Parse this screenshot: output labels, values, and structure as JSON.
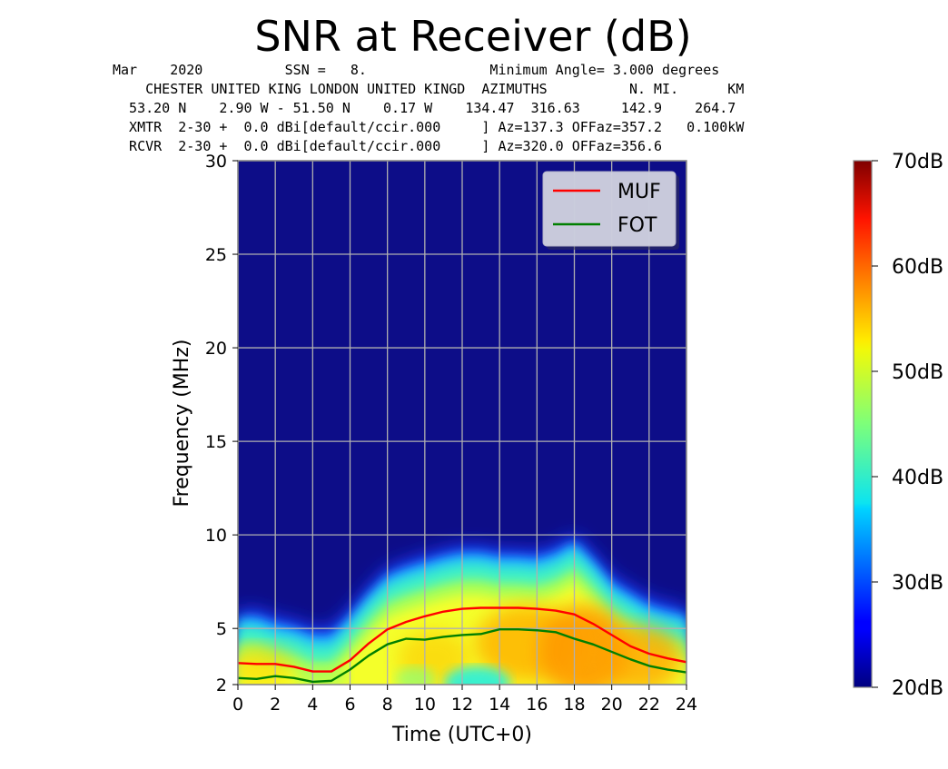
{
  "header": {
    "line1": "Mar    2020          SSN =   8.               Minimum Angle= 3.000 degrees",
    "line2": "    CHESTER UNITED KING LONDON UNITED KINGD  AZIMUTHS          N. MI.      KM",
    "line3": "  53.20 N    2.90 W - 51.50 N    0.17 W    134.47  316.63     142.9    264.7",
    "line4": "  XMTR  2-30 +  0.0 dBi[default/ccir.000     ] Az=137.3 OFFaz=357.2   0.100kW",
    "line5": "  RCVR  2-30 +  0.0 dBi[default/ccir.000     ] Az=320.0 OFFaz=356.6"
  },
  "chart_data": {
    "type": "heatmap",
    "title": "SNR at Receiver (dB)",
    "xlabel": "Time (UTC+0)",
    "ylabel": "Frequency (MHz)",
    "xlim": [
      0,
      24
    ],
    "ylim": [
      2,
      30
    ],
    "xticks": [
      0,
      2,
      4,
      6,
      8,
      10,
      12,
      14,
      16,
      18,
      20,
      22,
      24
    ],
    "yticks": [
      2,
      5,
      10,
      15,
      20,
      25,
      30
    ],
    "grid": true,
    "legend_position": "top-right",
    "colormap": "jet",
    "background_color": "#0d0d88",
    "colorbar": {
      "range": [
        20,
        70
      ],
      "ticks": [
        {
          "value": 20,
          "label": "20dB"
        },
        {
          "value": 30,
          "label": "30dB"
        },
        {
          "value": 40,
          "label": "40dB"
        },
        {
          "value": 50,
          "label": "50dB"
        },
        {
          "value": 60,
          "label": "60dB"
        },
        {
          "value": 70,
          "label": "70dB"
        }
      ]
    },
    "coverage_upper_edge_mhz": {
      "x": [
        0,
        1,
        2,
        3,
        4,
        5,
        6,
        7,
        8,
        9,
        10,
        11,
        12,
        13,
        14,
        15,
        16,
        17,
        18,
        19,
        20,
        21,
        22,
        23,
        24
      ],
      "y": [
        5.4,
        5.4,
        5.0,
        4.8,
        4.4,
        4.4,
        5.4,
        6.6,
        7.6,
        8.0,
        8.3,
        8.6,
        8.8,
        8.8,
        8.6,
        8.6,
        8.5,
        8.8,
        9.4,
        8.4,
        7.2,
        6.6,
        6.0,
        5.7,
        5.5
      ]
    },
    "series": [
      {
        "name": "MUF",
        "color": "#ff0000",
        "x": [
          0,
          1,
          2,
          3,
          4,
          5,
          6,
          7,
          8,
          9,
          10,
          11,
          12,
          13,
          14,
          15,
          16,
          17,
          18,
          19,
          20,
          21,
          22,
          23,
          24
        ],
        "y": [
          3.15,
          3.1,
          3.1,
          2.95,
          2.7,
          2.7,
          3.3,
          4.2,
          4.95,
          5.35,
          5.65,
          5.9,
          6.05,
          6.1,
          6.1,
          6.1,
          6.05,
          5.95,
          5.75,
          5.25,
          4.65,
          4.05,
          3.65,
          3.4,
          3.2
        ]
      },
      {
        "name": "FOT",
        "color": "#007f00",
        "x": [
          0,
          1,
          2,
          3,
          4,
          5,
          6,
          7,
          8,
          9,
          10,
          11,
          12,
          13,
          14,
          15,
          16,
          17,
          18,
          19,
          20,
          21,
          22,
          23,
          24
        ],
        "y": [
          2.35,
          2.3,
          2.45,
          2.35,
          2.15,
          2.2,
          2.8,
          3.55,
          4.15,
          4.45,
          4.4,
          4.55,
          4.65,
          4.7,
          4.95,
          4.95,
          4.9,
          4.8,
          4.45,
          4.15,
          3.75,
          3.35,
          3.0,
          2.8,
          2.65
        ]
      }
    ]
  }
}
